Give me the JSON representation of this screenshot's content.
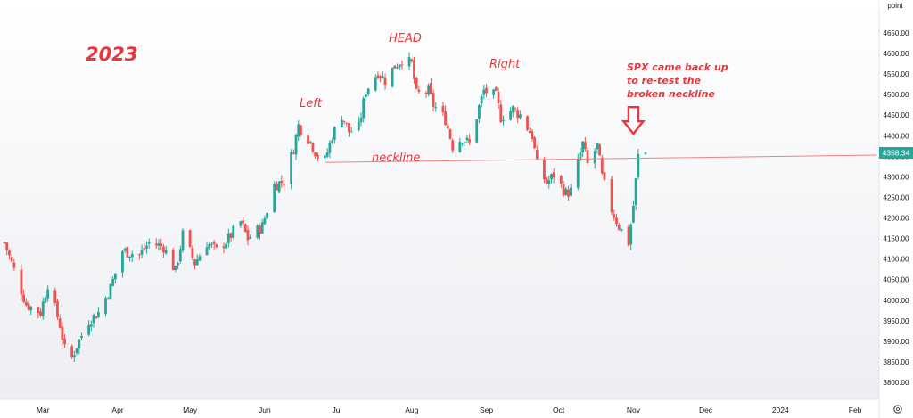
{
  "chart_data": {
    "type": "candlestick",
    "title": "",
    "ylabel": "point",
    "ylim": [
      3770,
      4700
    ],
    "y_ticks": [
      "4650.00",
      "4600.00",
      "4550.00",
      "4500.00",
      "4450.00",
      "4400.00",
      "4350.00",
      "4300.00",
      "4250.00",
      "4200.00",
      "4150.00",
      "4100.00",
      "4050.00",
      "4000.00",
      "3950.00",
      "3900.00",
      "3850.00",
      "3800.00"
    ],
    "y_tick_values": [
      4650,
      4600,
      4550,
      4500,
      4450,
      4400,
      4350,
      4300,
      4250,
      4200,
      4150,
      4100,
      4050,
      4000,
      3950,
      3900,
      3850,
      3800
    ],
    "x_ticks": [
      "Mar",
      "Apr",
      "May",
      "Jun",
      "Jul",
      "Aug",
      "Sep",
      "Oct",
      "Nov",
      "Dec",
      "2024",
      "Feb"
    ],
    "x_tick_dates": [
      "2023-03-01",
      "2023-04-01",
      "2023-05-01",
      "2023-06-01",
      "2023-07-01",
      "2023-08-01",
      "2023-09-01",
      "2023-10-01",
      "2023-11-01",
      "2023-12-01",
      "2024-01-01",
      "2024-02-01"
    ],
    "x_range": [
      "2023-02-13",
      "2024-02-08"
    ],
    "last_price": "4358.34",
    "colors": {
      "up": "#26a69a",
      "down": "#ef5350",
      "annotation": "#e8363d",
      "price_label_bg": "#26a69a",
      "neckline": "#f08080"
    },
    "neckline": {
      "label": "neckline",
      "from": {
        "date": "2023-06-26",
        "value": 4335
      },
      "to": {
        "date": "2024-02-10",
        "value": 4353
      }
    },
    "arrow": {
      "date": "2023-11-01",
      "value": 4435
    },
    "closes": [
      [
        "2023-02-13",
        4140
      ],
      [
        "2023-02-16",
        4090
      ],
      [
        "2023-02-22",
        3990
      ],
      [
        "2023-02-28",
        3970
      ],
      [
        "2023-03-03",
        4040
      ],
      [
        "2023-03-08",
        3940
      ],
      [
        "2023-03-10",
        3880
      ],
      [
        "2023-03-13",
        3860
      ],
      [
        "2023-03-15",
        3890
      ],
      [
        "2023-03-20",
        3950
      ],
      [
        "2023-03-24",
        3970
      ],
      [
        "2023-03-29",
        4030
      ],
      [
        "2023-04-03",
        4120
      ],
      [
        "2023-04-10",
        4110
      ],
      [
        "2023-04-14",
        4140
      ],
      [
        "2023-04-20",
        4130
      ],
      [
        "2023-04-25",
        4070
      ],
      [
        "2023-04-28",
        4160
      ],
      [
        "2023-05-03",
        4090
      ],
      [
        "2023-05-08",
        4140
      ],
      [
        "2023-05-12",
        4120
      ],
      [
        "2023-05-17",
        4150
      ],
      [
        "2023-05-22",
        4190
      ],
      [
        "2023-05-25",
        4150
      ],
      [
        "2023-05-31",
        4180
      ],
      [
        "2023-06-05",
        4280
      ],
      [
        "2023-06-09",
        4290
      ],
      [
        "2023-06-13",
        4370
      ],
      [
        "2023-06-15",
        4425
      ],
      [
        "2023-06-20",
        4385
      ],
      [
        "2023-06-23",
        4350
      ],
      [
        "2023-06-26",
        4340
      ],
      [
        "2023-06-29",
        4400
      ],
      [
        "2023-07-03",
        4450
      ],
      [
        "2023-07-06",
        4410
      ],
      [
        "2023-07-10",
        4420
      ],
      [
        "2023-07-13",
        4510
      ],
      [
        "2023-07-18",
        4555
      ],
      [
        "2023-07-21",
        4535
      ],
      [
        "2023-07-25",
        4570
      ],
      [
        "2023-07-28",
        4585
      ],
      [
        "2023-08-01",
        4575
      ],
      [
        "2023-08-03",
        4500
      ],
      [
        "2023-08-08",
        4510
      ],
      [
        "2023-08-10",
        4475
      ],
      [
        "2023-08-15",
        4440
      ],
      [
        "2023-08-18",
        4375
      ],
      [
        "2023-08-22",
        4395
      ],
      [
        "2023-08-25",
        4380
      ],
      [
        "2023-08-29",
        4470
      ],
      [
        "2023-08-31",
        4510
      ],
      [
        "2023-09-05",
        4495
      ],
      [
        "2023-09-07",
        4445
      ],
      [
        "2023-09-12",
        4465
      ],
      [
        "2023-09-15",
        4450
      ],
      [
        "2023-09-20",
        4400
      ],
      [
        "2023-09-22",
        4330
      ],
      [
        "2023-09-26",
        4285
      ],
      [
        "2023-09-29",
        4305
      ],
      [
        "2023-10-04",
        4260
      ],
      [
        "2023-10-06",
        4265
      ],
      [
        "2023-10-11",
        4380
      ],
      [
        "2023-10-13",
        4330
      ],
      [
        "2023-10-17",
        4375
      ],
      [
        "2023-10-19",
        4300
      ],
      [
        "2023-10-23",
        4220
      ],
      [
        "2023-10-26",
        4180
      ],
      [
        "2023-10-30",
        4140
      ],
      [
        "2023-11-01",
        4230
      ],
      [
        "2023-11-03",
        4350
      ],
      [
        "2023-11-06",
        4358.34
      ]
    ]
  },
  "annotations": {
    "year": "2023",
    "head": "HEAD",
    "left": "Left",
    "right": "Right",
    "neckline": "neckline",
    "note_lines": [
      "SPX came back up",
      "to re-test the",
      "broken neckline"
    ]
  },
  "toolbar": {
    "settings_icon": "gear-icon"
  }
}
